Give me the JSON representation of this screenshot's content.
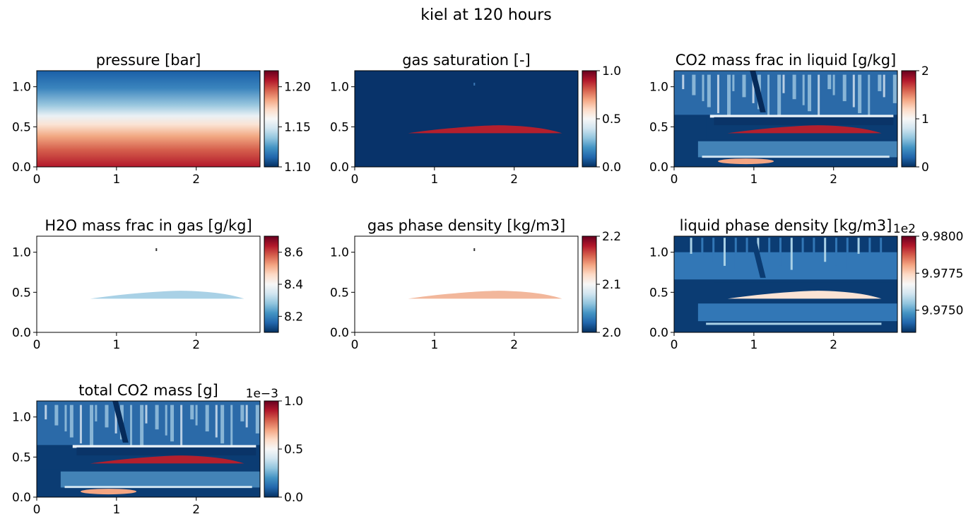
{
  "figure": {
    "title": "kiel at 120 hours"
  },
  "colors": {
    "colormap": "RdBu_r",
    "stops": [
      "#053061",
      "#2166ac",
      "#4393c3",
      "#92c5de",
      "#d1e5f0",
      "#f7f7f7",
      "#fddbc7",
      "#f4a582",
      "#d6604d",
      "#b2182b",
      "#67001f"
    ],
    "deep_blue": "#08336a",
    "mid_blue": "#3277b6",
    "light_blue": "#a9d1e6",
    "salmon": "#f2b79b",
    "red": "#b41f2d",
    "white": "#ffffff"
  },
  "chart_data": [
    {
      "type": "heatmap",
      "title": "pressure [bar]",
      "xlim": [
        0,
        2.8
      ],
      "ylim": [
        0,
        1.2
      ],
      "xticks": [
        "0",
        "1",
        "2"
      ],
      "yticks": [
        "0.0",
        "0.5",
        "1.0"
      ],
      "colorbar": {
        "range": [
          1.1,
          1.22
        ],
        "ticks": [
          "1.10",
          "1.15",
          "1.20"
        ],
        "offset": ""
      },
      "field": "vertical-gradient"
    },
    {
      "type": "heatmap",
      "title": "gas saturation [-]",
      "xlim": [
        0,
        2.8
      ],
      "ylim": [
        0,
        1.2
      ],
      "xticks": [
        "0",
        "1",
        "2"
      ],
      "yticks": [
        "0.0",
        "0.5",
        "1.0"
      ],
      "colorbar": {
        "range": [
          0.0,
          1.0
        ],
        "ticks": [
          "0.0",
          "0.5",
          "1.0"
        ],
        "offset": ""
      },
      "background": "deep_blue",
      "plume": "red",
      "field": "gas-plume"
    },
    {
      "type": "heatmap",
      "title": "CO2 mass frac in liquid [g/kg]",
      "xlim": [
        0,
        2.8
      ],
      "ylim": [
        0,
        1.2
      ],
      "xticks": [
        "0",
        "1",
        "2"
      ],
      "yticks": [
        "0.0",
        "0.5",
        "1.0"
      ],
      "colorbar": {
        "range": [
          0,
          2
        ],
        "ticks": [
          "0",
          "1",
          "2"
        ],
        "offset": ""
      },
      "field": "dissolved"
    },
    {
      "type": "heatmap",
      "title": "H2O mass frac in gas [g/kg]",
      "xlim": [
        0,
        2.8
      ],
      "ylim": [
        0,
        1.2
      ],
      "xticks": [
        "0",
        "1",
        "2"
      ],
      "yticks": [
        "0.0",
        "0.5",
        "1.0"
      ],
      "colorbar": {
        "range": [
          8.1,
          8.7
        ],
        "ticks": [
          "8.2",
          "8.4",
          "8.6"
        ],
        "offset": ""
      },
      "background": "white",
      "plume": "light_blue",
      "field": "gas-plume"
    },
    {
      "type": "heatmap",
      "title": "gas phase density [kg/m3]",
      "xlim": [
        0,
        2.8
      ],
      "ylim": [
        0,
        1.2
      ],
      "xticks": [
        "0",
        "1",
        "2"
      ],
      "yticks": [
        "0.0",
        "0.5",
        "1.0"
      ],
      "colorbar": {
        "range": [
          2.0,
          2.2
        ],
        "ticks": [
          "2.0",
          "2.1",
          "2.2"
        ],
        "offset": ""
      },
      "background": "white",
      "plume": "salmon",
      "field": "gas-plume"
    },
    {
      "type": "heatmap",
      "title": "liquid phase density [kg/m3]",
      "xlim": [
        0,
        2.8
      ],
      "ylim": [
        0,
        1.2
      ],
      "xticks": [
        "0",
        "1",
        "2"
      ],
      "yticks": [
        "0.0",
        "0.5",
        "1.0"
      ],
      "colorbar": {
        "range": [
          9.9735,
          9.98
        ],
        "ticks": [
          "9.9750",
          "9.9775",
          "9.9800"
        ],
        "offset": "1e2"
      },
      "field": "density"
    },
    {
      "type": "heatmap",
      "title": "total CO2 mass [g]",
      "xlim": [
        0,
        2.8
      ],
      "ylim": [
        0,
        1.2
      ],
      "xticks": [
        "0",
        "1",
        "2"
      ],
      "yticks": [
        "0.0",
        "0.5",
        "1.0"
      ],
      "colorbar": {
        "range": [
          0.0,
          1.0
        ],
        "ticks": [
          "0.0",
          "0.5",
          "1.0"
        ],
        "offset": "1e−3"
      },
      "field": "dissolved"
    }
  ]
}
